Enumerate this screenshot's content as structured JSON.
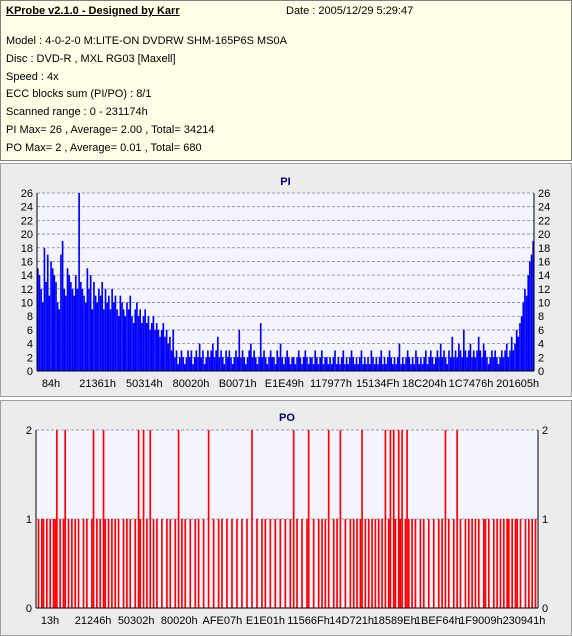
{
  "header": {
    "title": "KProbe v2.1.0 - Designed by Karr",
    "date": "Date : 2005/12/29 5:29:47",
    "lines": [
      "Model : 4-0-2-0 M:LITE-ON DVDRW SHM-165P6S MS0A",
      "Disc : DVD-R , MXL RG03 [Maxell]",
      "Speed : 4x",
      "ECC blocks sum (PI/PO) : 8/1",
      "Scanned range : 0 - 231174h",
      "PI Max= 26 , Average= 2.00 , Total= 34214",
      "PO Max= 2 , Average= 0.01 , Total= 680"
    ]
  },
  "colors": {
    "pi_bar": "#0000ff",
    "po_bar": "#ff0000",
    "title": "#000080",
    "grid": "#8080a0",
    "plot_bg": "#f4f4ff"
  },
  "chart_data": [
    {
      "type": "bar",
      "title": "PI",
      "ylim": [
        0,
        26
      ],
      "y_ticks": [
        0,
        2,
        4,
        6,
        8,
        10,
        12,
        14,
        16,
        18,
        20,
        22,
        24,
        26
      ],
      "x_tick_labels": [
        "84h",
        "21361h",
        "50314h",
        "80020h",
        "B0071h",
        "E1E49h",
        "117977h",
        "15134Fh",
        "18C204h",
        "1C7476h",
        "201605h"
      ],
      "grid": true,
      "values": [
        15,
        14,
        12,
        10,
        18,
        13,
        17,
        11,
        16,
        15,
        14,
        13,
        10,
        9,
        17,
        19,
        12,
        11,
        15,
        14,
        13,
        12,
        11,
        14,
        12,
        26,
        13,
        12,
        11,
        10,
        15,
        12,
        14,
        9,
        13,
        11,
        10,
        12,
        11,
        13,
        9,
        12,
        10,
        11,
        9,
        12,
        10,
        11,
        9,
        8,
        11,
        10,
        9,
        8,
        10,
        9,
        11,
        8,
        7,
        9,
        10,
        8,
        9,
        7,
        8,
        9,
        7,
        8,
        6,
        7,
        8,
        6,
        7,
        6,
        5,
        6,
        7,
        5,
        6,
        4,
        5,
        3,
        6,
        2,
        3,
        1,
        2,
        3,
        2,
        1,
        2,
        3,
        2,
        3,
        1,
        2,
        3,
        2,
        4,
        2,
        3,
        1,
        2,
        3,
        2,
        3,
        4,
        2,
        3,
        5,
        2,
        3,
        2,
        1,
        3,
        2,
        3,
        2,
        1,
        2,
        3,
        2,
        6,
        2,
        3,
        2,
        1,
        2,
        3,
        4,
        2,
        3,
        2,
        1,
        2,
        7,
        2,
        3,
        2,
        1,
        2,
        3,
        2,
        2,
        1,
        3,
        2,
        4,
        2,
        1,
        2,
        3,
        2,
        1,
        2,
        2,
        1,
        2,
        3,
        2,
        1,
        2,
        3,
        2,
        1,
        2,
        2,
        1,
        3,
        2,
        1,
        2,
        3,
        1,
        2,
        2,
        1,
        2,
        1,
        2,
        3,
        1,
        2,
        1,
        2,
        3,
        1,
        2,
        1,
        2,
        3,
        2,
        1,
        2,
        1,
        2,
        3,
        1,
        2,
        1,
        2,
        1,
        3,
        2,
        1,
        2,
        1,
        2,
        3,
        1,
        2,
        1,
        2,
        3,
        2,
        1,
        2,
        1,
        2,
        4,
        1,
        2,
        1,
        2,
        3,
        2,
        1,
        2,
        1,
        3,
        2,
        1,
        2,
        1,
        2,
        3,
        1,
        2,
        3,
        2,
        1,
        2,
        3,
        2,
        4,
        2,
        3,
        2,
        1,
        3,
        2,
        5,
        2,
        3,
        2,
        4,
        3,
        2,
        6,
        3,
        2,
        3,
        4,
        2,
        3,
        2,
        3,
        5,
        3,
        2,
        4,
        3,
        2,
        1,
        2,
        3,
        2,
        3,
        2,
        1,
        2,
        3,
        2,
        3,
        4,
        2,
        3,
        5,
        3,
        4,
        6,
        5,
        7,
        8,
        10,
        12,
        11,
        14,
        16,
        17,
        19
      ]
    },
    {
      "type": "bar",
      "title": "PO",
      "ylim": [
        0,
        2
      ],
      "y_ticks": [
        0,
        1,
        2
      ],
      "x_tick_labels": [
        "13h",
        "21246h",
        "50302h",
        "80020h",
        "AFE07h",
        "E1E01h",
        "11566Fh",
        "14D721h",
        "18589Eh",
        "1BEF64h",
        "1F9009h",
        "230941h"
      ],
      "grid": true,
      "values": [
        0,
        1,
        0,
        1,
        1,
        0,
        1,
        0,
        1,
        0,
        1,
        1,
        2,
        0,
        1,
        0,
        1,
        2,
        0,
        1,
        0,
        1,
        0,
        1,
        0,
        1,
        0,
        0,
        1,
        0,
        1,
        0,
        0,
        1,
        2,
        0,
        1,
        0,
        1,
        0,
        2,
        1,
        0,
        1,
        0,
        1,
        0,
        1,
        0,
        1,
        0,
        0,
        1,
        0,
        1,
        0,
        1,
        0,
        0,
        1,
        0,
        2,
        1,
        0,
        2,
        0,
        1,
        0,
        2,
        0,
        1,
        0,
        1,
        0,
        0,
        1,
        0,
        0,
        1,
        0,
        1,
        0,
        0,
        1,
        0,
        2,
        0,
        1,
        0,
        1,
        0,
        0,
        1,
        0,
        0,
        1,
        0,
        1,
        0,
        0,
        1,
        0,
        0,
        2,
        0,
        0,
        1,
        0,
        0,
        1,
        0,
        1,
        0,
        0,
        1,
        0,
        0,
        1,
        0,
        0,
        1,
        0,
        0,
        1,
        0,
        0,
        1,
        0,
        0,
        2,
        0,
        0,
        1,
        0,
        0,
        1,
        0,
        1,
        0,
        0,
        1,
        0,
        0,
        1,
        0,
        0,
        1,
        0,
        0,
        1,
        0,
        0,
        1,
        0,
        2,
        0,
        1,
        0,
        0,
        1,
        0,
        0,
        1,
        2,
        0,
        0,
        1,
        0,
        0,
        1,
        0,
        1,
        0,
        1,
        0,
        2,
        0,
        0,
        1,
        0,
        1,
        0,
        2,
        0,
        0,
        1,
        0,
        0,
        1,
        0,
        1,
        0,
        1,
        0,
        1,
        2,
        0,
        1,
        0,
        1,
        0,
        1,
        0,
        1,
        0,
        1,
        0,
        1,
        0,
        2,
        0,
        1,
        2,
        0,
        2,
        1,
        0,
        2,
        1,
        2,
        0,
        1,
        2,
        1,
        0,
        1,
        0,
        1,
        0,
        0,
        1,
        0,
        1,
        0,
        0,
        1,
        0,
        0,
        1,
        0,
        0,
        1,
        0,
        1,
        0,
        2,
        0,
        1,
        0,
        0,
        1,
        0,
        2,
        0,
        1,
        0,
        0,
        1,
        0,
        1,
        0,
        1,
        0,
        1,
        0,
        1,
        0,
        0,
        1,
        1,
        0,
        1,
        0,
        0,
        1,
        0,
        1,
        0,
        1,
        0,
        1,
        0,
        1,
        1,
        0,
        1,
        0,
        1,
        1,
        0,
        1,
        0,
        0,
        1,
        0,
        1,
        0,
        1,
        0,
        1,
        0
      ]
    }
  ]
}
